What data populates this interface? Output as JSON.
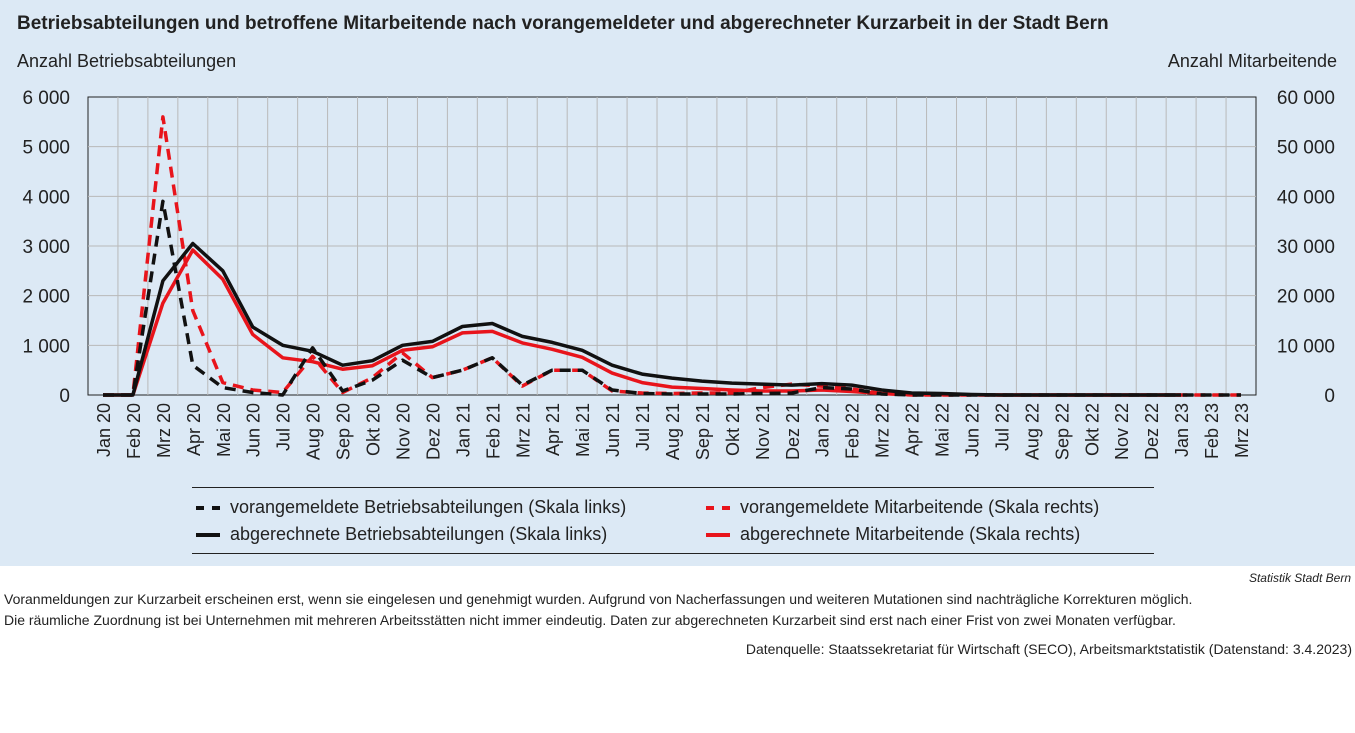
{
  "title": "Betriebsabteilungen und betroffene Mitarbeitende nach vorangemeldeter und abgerechneter Kurzarbeit in der Stadt Bern",
  "ylabel_left": "Anzahl Betriebsabteilungen",
  "ylabel_right": "Anzahl Mitarbeitende",
  "legend": {
    "pre_units": "vorangemeldete Betriebsabteilungen (Skala links)",
    "pre_staff": "vorangemeldete Mitarbeitende (Skala rechts)",
    "act_units": "abgerechnete Betriebsabteilungen (Skala links)",
    "act_staff": "abgerechnete Mitarbeitende (Skala rechts)"
  },
  "source_brand": "Statistik Stadt Bern",
  "notes": [
    "Voranmeldungen zur Kurzarbeit erscheinen erst, wenn sie eingelesen und genehmigt wurden. Aufgrund von Nacherfassungen und weiteren Mutationen sind nachträgliche Korrekturen möglich.",
    "Die räumliche Zuordnung ist bei Unternehmen mit mehreren Arbeitsstätten nicht immer eindeutig. Daten zur abgerechneten Kurzarbeit sind erst nach einer Frist von zwei Monaten verfügbar."
  ],
  "datasource": "Datenquelle: Staatssekretariat für Wirtschaft (SECO), Arbeitsmarktstatistik (Datenstand: 3.4.2023)",
  "colors": {
    "black": "#111111",
    "red": "#e8141b",
    "plot_bg": "#dce9f5",
    "grid": "#b9b9b9"
  },
  "chart_data": {
    "type": "line",
    "categories": [
      "Jan 20",
      "Feb 20",
      "Mrz 20",
      "Apr 20",
      "Mai 20",
      "Jun 20",
      "Jul 20",
      "Aug 20",
      "Sep 20",
      "Okt 20",
      "Nov 20",
      "Dez 20",
      "Jan 21",
      "Feb 21",
      "Mrz 21",
      "Apr 21",
      "Mai 21",
      "Jun 21",
      "Jul 21",
      "Aug 21",
      "Sep 21",
      "Okt 21",
      "Nov 21",
      "Dez 21",
      "Jan 22",
      "Feb 22",
      "Mrz 22",
      "Apr 22",
      "Mai 22",
      "Jun 22",
      "Jul 22",
      "Aug 22",
      "Sep 22",
      "Okt 22",
      "Nov 22",
      "Dez 22",
      "Jan 23",
      "Feb 23",
      "Mrz 23"
    ],
    "left_ticks": [
      "0",
      "1 000",
      "2 000",
      "3 000",
      "4 000",
      "5 000",
      "6 000"
    ],
    "right_ticks": [
      "0",
      "10 000",
      "20 000",
      "30 000",
      "40 000",
      "50 000",
      "60 000"
    ],
    "ylim_left": [
      0,
      6000
    ],
    "ylim_right": [
      0,
      60000
    ],
    "grid": true,
    "series": [
      {
        "name": "vorangemeldete Betriebsabteilungen (Skala links)",
        "axis": "left",
        "style": "dashed",
        "color": "black",
        "values": [
          0,
          0,
          3900,
          600,
          150,
          50,
          0,
          950,
          80,
          300,
          700,
          350,
          500,
          750,
          200,
          500,
          500,
          100,
          30,
          20,
          20,
          20,
          30,
          40,
          150,
          120,
          20,
          0,
          0,
          0,
          0,
          0,
          0,
          0,
          0,
          0,
          0,
          0,
          0
        ]
      },
      {
        "name": "abgerechnete Betriebsabteilungen (Skala links)",
        "axis": "left",
        "style": "solid",
        "color": "black",
        "values": [
          0,
          0,
          2300,
          3050,
          2500,
          1370,
          1000,
          880,
          600,
          690,
          1000,
          1080,
          1380,
          1440,
          1180,
          1060,
          900,
          600,
          420,
          340,
          280,
          240,
          220,
          200,
          230,
          200,
          100,
          40,
          30,
          10,
          0,
          0,
          0,
          0,
          0,
          0,
          0,
          null,
          null
        ]
      },
      {
        "name": "vorangemeldete Mitarbeitende (Skala rechts)",
        "axis": "right",
        "style": "dashed",
        "color": "red",
        "values": [
          0,
          0,
          56000,
          17000,
          2500,
          1000,
          500,
          7800,
          500,
          3500,
          8500,
          3500,
          5000,
          7500,
          1800,
          5000,
          5000,
          800,
          400,
          300,
          400,
          400,
          1500,
          2200,
          1800,
          1200,
          300,
          0,
          0,
          0,
          0,
          0,
          0,
          0,
          0,
          0,
          0,
          0,
          0
        ]
      },
      {
        "name": "abgerechnete Mitarbeitende (Skala rechts)",
        "axis": "right",
        "style": "solid",
        "color": "red",
        "values": [
          0,
          0,
          18500,
          29200,
          23300,
          12200,
          7500,
          6700,
          5200,
          5900,
          9000,
          9700,
          12500,
          12800,
          10500,
          9200,
          7600,
          4400,
          2500,
          1600,
          1300,
          1000,
          800,
          800,
          1000,
          700,
          300,
          100,
          100,
          50,
          0,
          0,
          0,
          0,
          0,
          0,
          0,
          null,
          null
        ]
      }
    ]
  }
}
